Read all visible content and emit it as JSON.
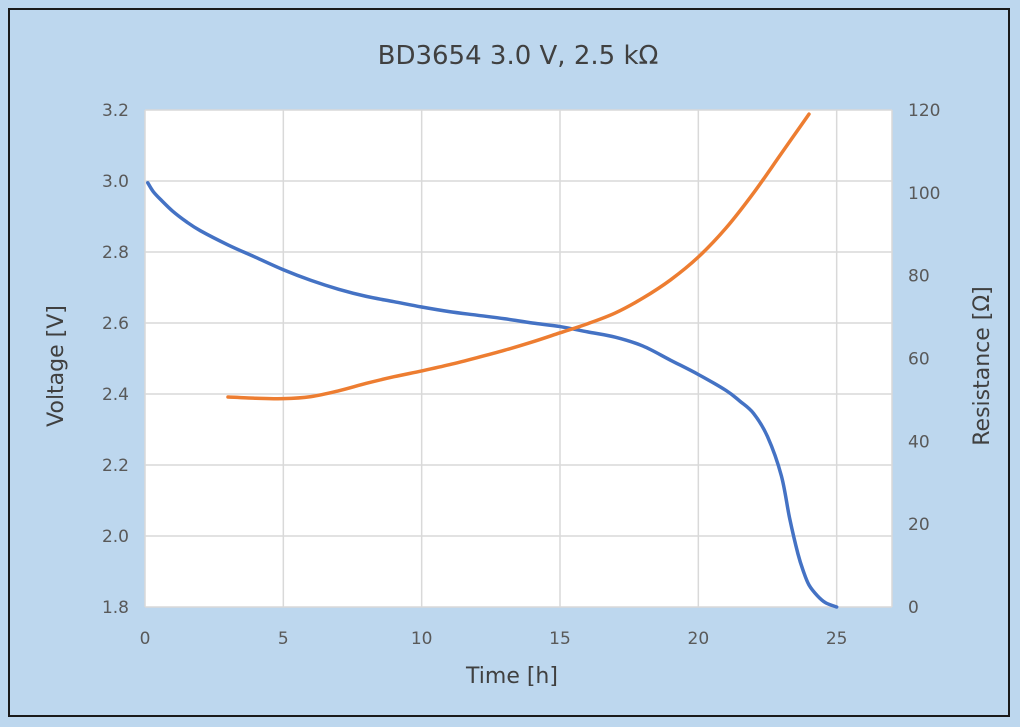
{
  "chart_data": {
    "type": "line",
    "title": "BD3654 3.0 V, 2.5 kΩ",
    "xlabel": "Time [h]",
    "ylabel": "Voltage [V]",
    "y2label": "Resistance [Ω]",
    "xlim": [
      0,
      27
    ],
    "ylim": [
      1.8,
      3.2
    ],
    "y2lim": [
      0,
      120
    ],
    "x_ticks": [
      "0",
      "5",
      "10",
      "15",
      "20",
      "25"
    ],
    "y_ticks": [
      "1.8",
      "2.0",
      "2.2",
      "2.4",
      "2.6",
      "2.8",
      "3.0",
      "3.2"
    ],
    "y2_ticks": [
      "0",
      "20",
      "40",
      "60",
      "80",
      "100",
      "120"
    ],
    "grid": true,
    "series": [
      {
        "axis": "left",
        "color": "#4472c4",
        "x": [
          0.1,
          0.3,
          0.6,
          1,
          1.5,
          2,
          3,
          4,
          5,
          6,
          7,
          8,
          9,
          10,
          11,
          12,
          13,
          14,
          15,
          16,
          17,
          18,
          19,
          20,
          21,
          21.5,
          22,
          22.5,
          23,
          23.3,
          23.6,
          23.8,
          24,
          24.3,
          24.6,
          25
        ],
        "y": [
          2.995,
          2.97,
          2.945,
          2.915,
          2.885,
          2.86,
          2.82,
          2.785,
          2.75,
          2.72,
          2.695,
          2.675,
          2.66,
          2.645,
          2.632,
          2.622,
          2.612,
          2.6,
          2.59,
          2.575,
          2.56,
          2.535,
          2.495,
          2.455,
          2.41,
          2.38,
          2.345,
          2.28,
          2.17,
          2.05,
          1.95,
          1.9,
          1.862,
          1.832,
          1.812,
          1.8
        ]
      },
      {
        "axis": "right",
        "color": "#ed7d31",
        "x": [
          3,
          4,
          5,
          6,
          7,
          8,
          9,
          10,
          11,
          12,
          13,
          14,
          15,
          16,
          17,
          18,
          19,
          20,
          21,
          22,
          23,
          24
        ],
        "y": [
          50.7,
          50.4,
          50.3,
          50.8,
          52.2,
          54,
          55.6,
          57,
          58.5,
          60.2,
          62,
          64,
          66.2,
          68.4,
          71,
          74.6,
          79,
          84.5,
          91.5,
          100,
          109.5,
          119
        ]
      }
    ]
  }
}
